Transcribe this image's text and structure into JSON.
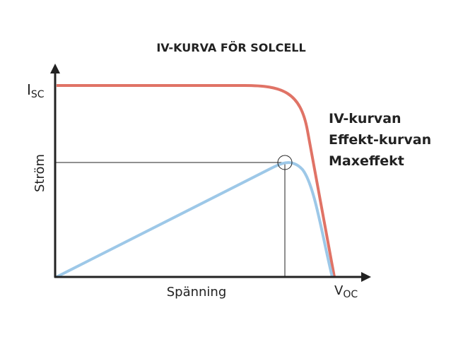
{
  "title": "IV-KURVA FÖR SOLCELL",
  "y_axis": {
    "label": "Ström",
    "marker": {
      "main": "I",
      "sub": "SC"
    }
  },
  "x_axis": {
    "label": "Spänning",
    "marker": {
      "main": "V",
      "sub": "OC"
    }
  },
  "legend": [
    {
      "label": "IV-kurvan",
      "color": "#e07366"
    },
    {
      "label": "Effekt-kurvan",
      "color": "#9dc8e8"
    },
    {
      "label": "Maxeffekt",
      "color": "#222222"
    }
  ]
}
